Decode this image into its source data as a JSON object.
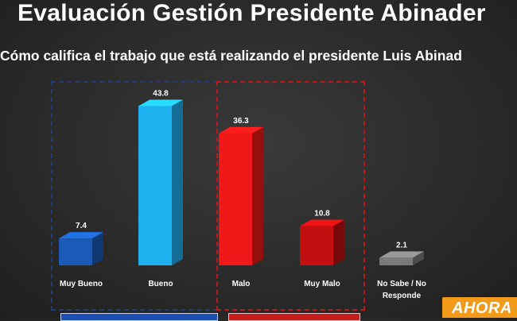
{
  "header": {
    "title": "Evaluación Gestión Presidente Abinader",
    "subtitle": "Cómo califica el trabajo  que está realizando el presidente Luis Abinad"
  },
  "logo": {
    "text": "AHORA",
    "color": "#f29a1a"
  },
  "chart_data": {
    "type": "bar",
    "categories": [
      "Muy Bueno",
      "Bueno",
      "Malo",
      "Muy Malo",
      "No Sabe / No Responde"
    ],
    "category_lines": [
      [
        "Muy Bueno"
      ],
      [
        "Bueno"
      ],
      [
        "Malo"
      ],
      [
        "Muy Malo"
      ],
      [
        "No Sabe / No",
        "Responde"
      ]
    ],
    "values": [
      7.4,
      43.8,
      36.3,
      10.8,
      2.1
    ],
    "value_labels": [
      "7.4",
      "43.8",
      "36.3",
      "10.8",
      "2.1"
    ],
    "colors": [
      "#1a5bb8",
      "#1fb0f0",
      "#f01818",
      "#c20f0f",
      "#7a7a7a"
    ],
    "ylim": [
      0,
      45
    ],
    "grid": false,
    "style": "3d"
  }
}
